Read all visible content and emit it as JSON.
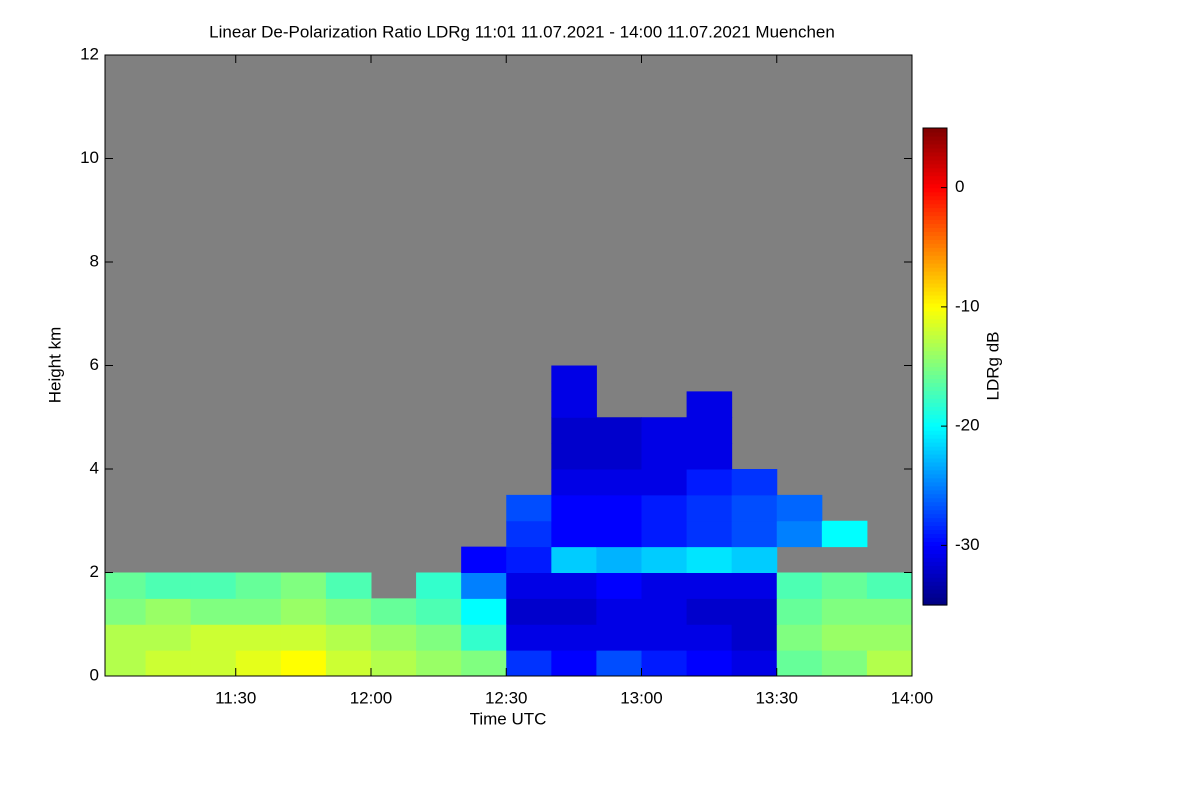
{
  "chart_data": {
    "type": "heatmap",
    "title": "Linear De-Polarization Ratio LDRg   11:01 11.07.2021 - 14:00 11.07.2021 Muenchen",
    "xlabel": "Time UTC",
    "ylabel": "Height km",
    "colorbar_label": "LDRg dB",
    "colormap": "jet",
    "background": "#808080",
    "xlim": [
      11.0167,
      14.0
    ],
    "ylim": [
      0,
      12
    ],
    "zlim": [
      -35,
      5
    ],
    "xticks": [
      {
        "value": 11.5,
        "label": "11:30"
      },
      {
        "value": 12.0,
        "label": "12:00"
      },
      {
        "value": 12.5,
        "label": "12:30"
      },
      {
        "value": 13.0,
        "label": "13:00"
      },
      {
        "value": 13.5,
        "label": "13:30"
      },
      {
        "value": 14.0,
        "label": "14:00"
      }
    ],
    "yticks": [
      0,
      2,
      4,
      6,
      8,
      10,
      12
    ],
    "zticks": [
      0,
      -10,
      -20,
      -30
    ],
    "x": [
      11.0167,
      11.1667,
      11.3333,
      11.5,
      11.6667,
      11.8333,
      12.0,
      12.1667,
      12.3333,
      12.5,
      12.6667,
      12.8333,
      13.0,
      13.1667,
      13.3333,
      13.5,
      13.6667,
      13.8333,
      14.0
    ],
    "y": [
      0,
      0.5,
      1,
      1.5,
      2,
      2.5,
      3,
      3.5,
      4,
      4.5,
      5,
      5.5,
      6,
      6.5
    ],
    "z": [
      [
        -13,
        -12,
        -12,
        -11,
        -10,
        -12,
        -13,
        -14,
        -15,
        -28,
        -30,
        -27,
        -29,
        -30,
        -31,
        -16,
        -15,
        -13
      ],
      [
        -13,
        -13,
        -12,
        -12,
        -12,
        -13,
        -14,
        -15,
        -18,
        -31,
        -31,
        -31,
        -31,
        -31,
        -32,
        -15,
        -14,
        -14
      ],
      [
        -15,
        -14,
        -15,
        -15,
        -14,
        -15,
        -16,
        -17,
        -20,
        -32,
        -32,
        -31,
        -31,
        -32,
        -32,
        -16,
        -15,
        -15
      ],
      [
        -16,
        -17,
        -17,
        -16,
        -15,
        -17,
        null,
        -18,
        -25,
        -31,
        -31,
        -30,
        -31,
        -31,
        -31,
        -17,
        -16,
        -17
      ],
      [
        null,
        null,
        null,
        null,
        null,
        null,
        null,
        null,
        -30,
        -29,
        -22,
        -23,
        -22,
        -21,
        -22,
        null,
        null,
        null
      ],
      [
        null,
        null,
        null,
        null,
        null,
        null,
        null,
        null,
        null,
        -28,
        -30,
        -30,
        -29,
        -28,
        -27,
        -25,
        -20,
        null
      ],
      [
        null,
        null,
        null,
        null,
        null,
        null,
        null,
        null,
        null,
        -27,
        -30,
        -30,
        -29,
        -28,
        -27,
        -26,
        null,
        null
      ],
      [
        null,
        null,
        null,
        null,
        null,
        null,
        null,
        null,
        null,
        null,
        -31,
        -31,
        -31,
        -29,
        -28,
        null,
        null,
        null
      ],
      [
        null,
        null,
        null,
        null,
        null,
        null,
        null,
        null,
        null,
        null,
        -32,
        -32,
        -31,
        -31,
        null,
        null,
        null,
        null
      ],
      [
        null,
        null,
        null,
        null,
        null,
        null,
        null,
        null,
        null,
        null,
        -32,
        -32,
        -31,
        -31,
        null,
        null,
        null,
        null
      ],
      [
        null,
        null,
        null,
        null,
        null,
        null,
        null,
        null,
        null,
        null,
        -31,
        null,
        null,
        -31,
        null,
        null,
        null,
        null
      ],
      [
        null,
        null,
        null,
        null,
        null,
        null,
        null,
        null,
        null,
        null,
        -31,
        null,
        null,
        null,
        null,
        null,
        null,
        null
      ],
      [
        null,
        null,
        null,
        null,
        null,
        null,
        null,
        null,
        null,
        null,
        null,
        null,
        null,
        null,
        null,
        null,
        null,
        null
      ]
    ]
  }
}
